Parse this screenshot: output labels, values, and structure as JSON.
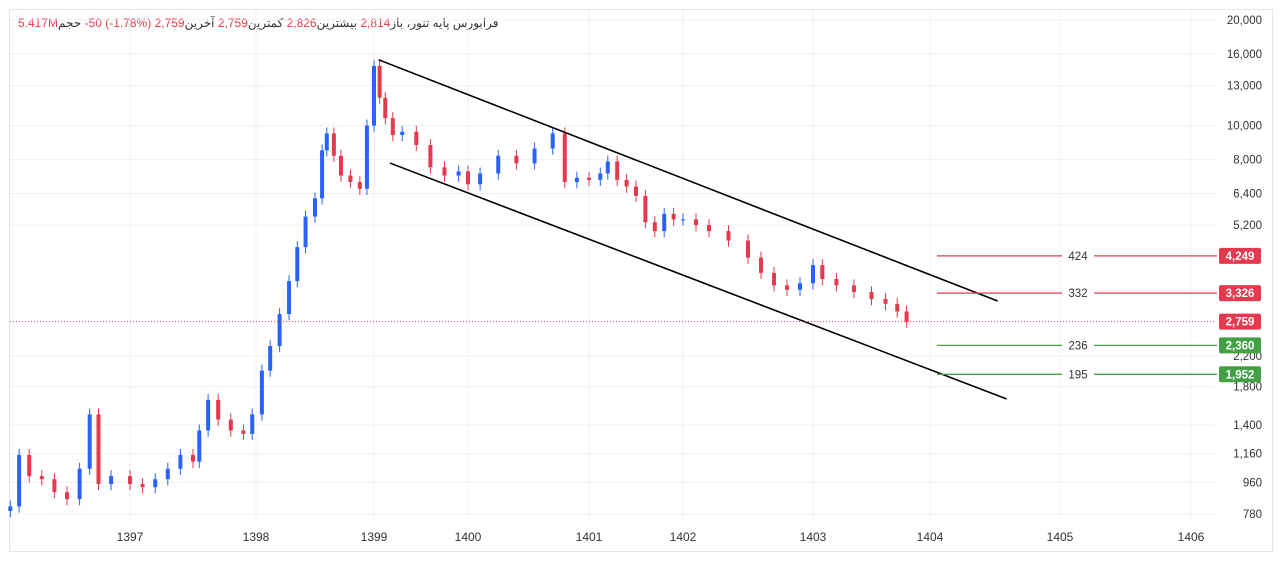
{
  "header": {
    "symbol": "فرابورس پایه",
    "company": "تنور،",
    "open_label": "باز",
    "open": "2,814",
    "high_label": "بیشترین",
    "high": "2,826",
    "low_label": "کمترین",
    "low": "2,759",
    "close_label": "آخرین",
    "close": "2,759",
    "change": "-50 (-1.78%)",
    "volume_label": "حجم",
    "volume": "5.417M"
  },
  "colors": {
    "up": "#2962ff",
    "down": "#e53950",
    "resistance": "#e53950",
    "support": "#43a047",
    "trendline": "#000000"
  },
  "chart_data": {
    "type": "candlestick",
    "yscale": "log",
    "ylim": [
      780,
      20000
    ],
    "y_ticks": [
      "20,000",
      "16,000",
      "13,000",
      "10,000",
      "8,000",
      "6,400",
      "5,200",
      "2,200",
      "1,800",
      "1,400",
      "1,160",
      "960",
      "780"
    ],
    "x_ticks": [
      "1397",
      "1398",
      "1399",
      "1400",
      "1401",
      "1402",
      "1403",
      "1404",
      "1405",
      "1406"
    ],
    "grid": true,
    "series": [
      [
        1396.05,
        820
      ],
      [
        1396.12,
        1150
      ],
      [
        1396.2,
        1000
      ],
      [
        1396.3,
        980
      ],
      [
        1396.4,
        900
      ],
      [
        1396.5,
        860
      ],
      [
        1396.6,
        1050
      ],
      [
        1396.68,
        1500
      ],
      [
        1396.75,
        950
      ],
      [
        1396.85,
        1000
      ],
      [
        1397.0,
        950
      ],
      [
        1397.1,
        930
      ],
      [
        1397.2,
        980
      ],
      [
        1397.3,
        1050
      ],
      [
        1397.4,
        1150
      ],
      [
        1397.5,
        1100
      ],
      [
        1397.55,
        1350
      ],
      [
        1397.62,
        1650
      ],
      [
        1397.7,
        1450
      ],
      [
        1397.8,
        1350
      ],
      [
        1397.9,
        1320
      ],
      [
        1397.97,
        1500
      ],
      [
        1398.05,
        2000
      ],
      [
        1398.12,
        2350
      ],
      [
        1398.2,
        2900
      ],
      [
        1398.28,
        3600
      ],
      [
        1398.35,
        4500
      ],
      [
        1398.42,
        5500
      ],
      [
        1398.5,
        6200
      ],
      [
        1398.56,
        8500
      ],
      [
        1398.6,
        9500
      ],
      [
        1398.66,
        8200
      ],
      [
        1398.72,
        7200
      ],
      [
        1398.8,
        6900
      ],
      [
        1398.88,
        6600
      ],
      [
        1398.94,
        10000
      ],
      [
        1399.0,
        14800
      ],
      [
        1399.06,
        12000
      ],
      [
        1399.12,
        10500
      ],
      [
        1399.2,
        9400
      ],
      [
        1399.3,
        9600
      ],
      [
        1399.45,
        8800
      ],
      [
        1399.6,
        7600
      ],
      [
        1399.75,
        7200
      ],
      [
        1399.9,
        7400
      ],
      [
        1400.0,
        6800
      ],
      [
        1400.1,
        7300
      ],
      [
        1400.25,
        8200
      ],
      [
        1400.4,
        7800
      ],
      [
        1400.55,
        8600
      ],
      [
        1400.7,
        9500
      ],
      [
        1400.8,
        6900
      ],
      [
        1400.9,
        7100
      ],
      [
        1401.0,
        7000
      ],
      [
        1401.12,
        7300
      ],
      [
        1401.2,
        7900
      ],
      [
        1401.3,
        7000
      ],
      [
        1401.4,
        6700
      ],
      [
        1401.5,
        6300
      ],
      [
        1401.6,
        5300
      ],
      [
        1401.7,
        5000
      ],
      [
        1401.8,
        5600
      ],
      [
        1401.9,
        5400
      ],
      [
        1402.0,
        5400
      ],
      [
        1402.1,
        5200
      ],
      [
        1402.2,
        5000
      ],
      [
        1402.35,
        4700
      ],
      [
        1402.5,
        4200
      ],
      [
        1402.6,
        3800
      ],
      [
        1402.7,
        3500
      ],
      [
        1402.8,
        3400
      ],
      [
        1402.9,
        3550
      ],
      [
        1403.0,
        4000
      ],
      [
        1403.08,
        3650
      ],
      [
        1403.2,
        3500
      ],
      [
        1403.35,
        3350
      ],
      [
        1403.5,
        3200
      ],
      [
        1403.62,
        3100
      ],
      [
        1403.72,
        2950
      ],
      [
        1403.8,
        2759
      ]
    ],
    "trendlines": [
      {
        "from": [
          1399.05,
          15400
        ],
        "to": [
          1404.52,
          3158
        ]
      },
      {
        "from": [
          1399.17,
          7816
        ],
        "to": [
          1404.59,
          1660
        ]
      }
    ],
    "levels": [
      {
        "price": 4249,
        "price_label": "4,249",
        "label": "424",
        "kind": "resistance"
      },
      {
        "price": 3326,
        "price_label": "3,326",
        "label": "332",
        "kind": "resistance"
      },
      {
        "price": 2360,
        "price_label": "2,360",
        "label": "236",
        "kind": "support"
      },
      {
        "price": 1952,
        "price_label": "1,952",
        "label": "195",
        "kind": "support"
      }
    ],
    "last_price": {
      "price": 2759,
      "label": "2,759"
    }
  }
}
